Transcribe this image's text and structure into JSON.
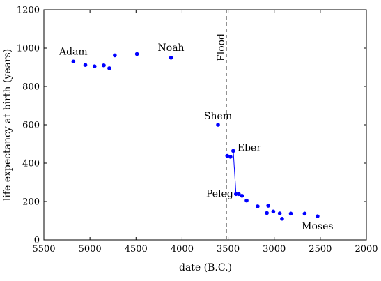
{
  "chart_data": {
    "type": "scatter",
    "xlabel": "date (B.C.)",
    "ylabel": "life expectancy at birth (years)",
    "xlim": [
      5500,
      2000
    ],
    "ylim": [
      0,
      1200
    ],
    "x_reversed": true,
    "xticks": [
      5500,
      5000,
      4500,
      4000,
      3500,
      3000,
      2500,
      2000
    ],
    "yticks": [
      0,
      200,
      400,
      600,
      800,
      1000,
      1200
    ],
    "grid": false,
    "marker_color": "#0000ff",
    "points": [
      {
        "x": 5180,
        "y": 930
      },
      {
        "x": 5050,
        "y": 912
      },
      {
        "x": 4950,
        "y": 905
      },
      {
        "x": 4850,
        "y": 910
      },
      {
        "x": 4790,
        "y": 895
      },
      {
        "x": 4730,
        "y": 962
      },
      {
        "x": 4490,
        "y": 969
      },
      {
        "x": 4120,
        "y": 950
      },
      {
        "x": 3610,
        "y": 600
      },
      {
        "x": 3510,
        "y": 438
      },
      {
        "x": 3475,
        "y": 433
      },
      {
        "x": 3445,
        "y": 464
      },
      {
        "x": 3415,
        "y": 239
      },
      {
        "x": 3385,
        "y": 239
      },
      {
        "x": 3350,
        "y": 230
      },
      {
        "x": 3300,
        "y": 205
      },
      {
        "x": 3180,
        "y": 175
      },
      {
        "x": 3080,
        "y": 140
      },
      {
        "x": 3065,
        "y": 178
      },
      {
        "x": 3010,
        "y": 148
      },
      {
        "x": 2940,
        "y": 138
      },
      {
        "x": 2915,
        "y": 110
      },
      {
        "x": 2820,
        "y": 137
      },
      {
        "x": 2670,
        "y": 137
      },
      {
        "x": 2530,
        "y": 123
      }
    ],
    "connector": [
      {
        "x": 3445,
        "y": 464
      },
      {
        "x": 3415,
        "y": 239
      }
    ],
    "flood_line_x": 3520,
    "annotations": [
      {
        "text": "Adam",
        "x": 5180,
        "y": 930
      },
      {
        "text": "Noah",
        "x": 4120,
        "y": 950
      },
      {
        "text": "Shem",
        "x": 3610,
        "y": 600
      },
      {
        "text": "Eber",
        "x": 3445,
        "y": 464
      },
      {
        "text": "Peleg",
        "x": 3415,
        "y": 239
      },
      {
        "text": "Moses",
        "x": 2530,
        "y": 123
      }
    ],
    "flood_label": "Flood"
  }
}
